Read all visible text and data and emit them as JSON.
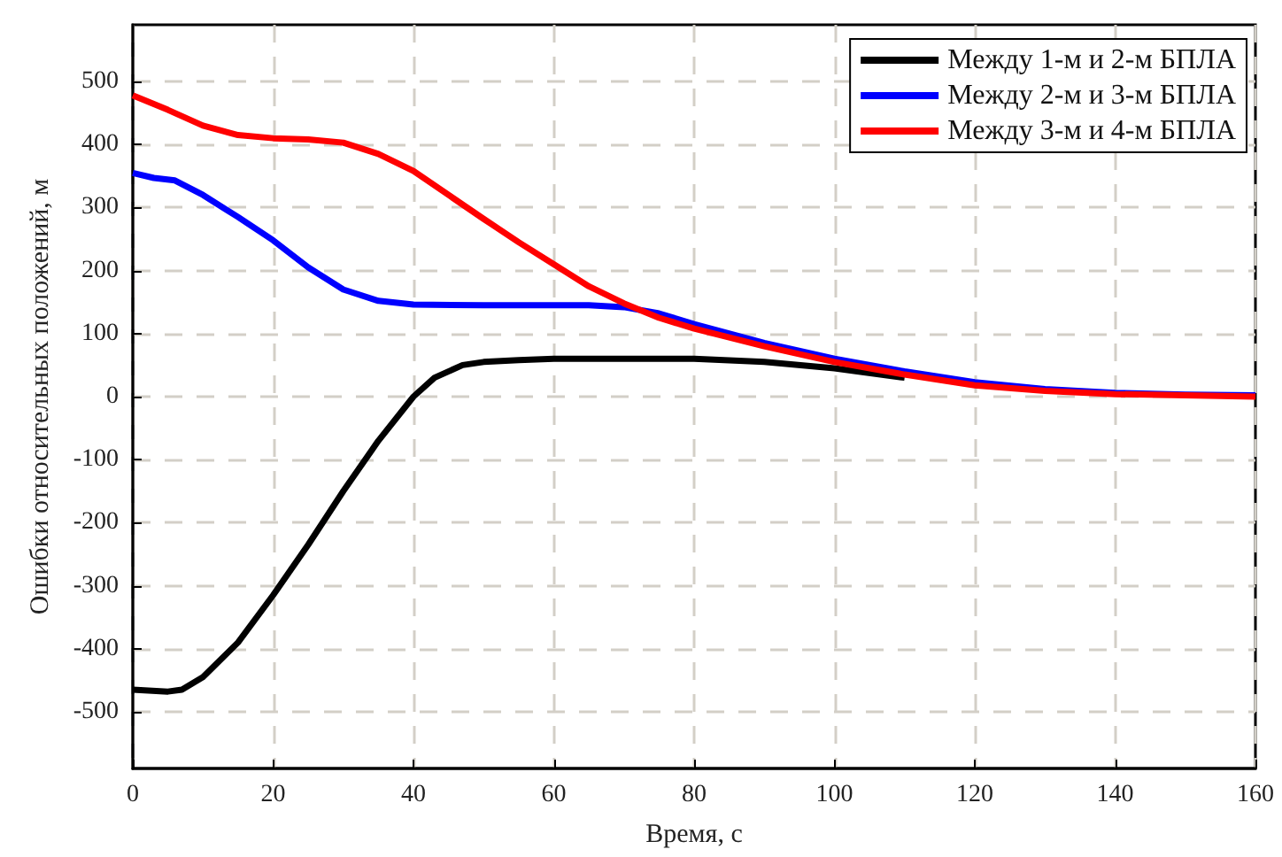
{
  "chart_data": {
    "type": "line",
    "xlabel": "Время, с",
    "ylabel": "Ошибки относительных положений, м",
    "xlim": [
      0,
      160
    ],
    "xticks": [
      0,
      20,
      40,
      60,
      80,
      100,
      120,
      140,
      160
    ],
    "ylim": [
      -590,
      590
    ],
    "yticks": [
      -500,
      -400,
      -300,
      -200,
      -100,
      0,
      100,
      200,
      300,
      400,
      500
    ],
    "grid": true,
    "legend": "top right",
    "marker": "none",
    "line_style": "solid",
    "series": [
      {
        "name": "Между 1-м и 2-м БПЛА",
        "color": "#000000",
        "x": [
          0,
          5,
          7,
          10,
          15,
          20,
          25,
          30,
          35,
          40,
          43,
          47,
          50,
          55,
          60,
          80,
          90,
          100,
          110
        ],
        "values": [
          -465,
          -468,
          -465,
          -445,
          -390,
          -315,
          -235,
          -150,
          -70,
          0,
          30,
          50,
          55,
          58,
          60,
          60,
          55,
          45,
          30
        ]
      },
      {
        "name": "Между 2-м и 3-м БПЛА",
        "color": "#0000ff",
        "x": [
          0,
          3,
          6,
          10,
          15,
          20,
          25,
          30,
          35,
          40,
          50,
          60,
          65,
          70,
          75,
          80,
          90,
          100,
          110,
          120,
          130,
          140,
          150,
          160
        ],
        "values": [
          355,
          347,
          343,
          320,
          285,
          248,
          205,
          170,
          152,
          146,
          145,
          145,
          145,
          142,
          132,
          115,
          85,
          60,
          40,
          23,
          12,
          6,
          3,
          2
        ]
      },
      {
        "name": "Между 3-м и 4-м БПЛА",
        "color": "#ff0000",
        "x": [
          0,
          5,
          10,
          15,
          20,
          25,
          30,
          35,
          40,
          45,
          50,
          55,
          60,
          65,
          70,
          75,
          80,
          90,
          100,
          110,
          120,
          130,
          140,
          150,
          160
        ],
        "values": [
          478,
          455,
          430,
          415,
          410,
          408,
          403,
          385,
          358,
          320,
          282,
          245,
          210,
          175,
          148,
          125,
          108,
          80,
          55,
          35,
          18,
          9,
          4,
          2,
          0
        ]
      }
    ]
  }
}
